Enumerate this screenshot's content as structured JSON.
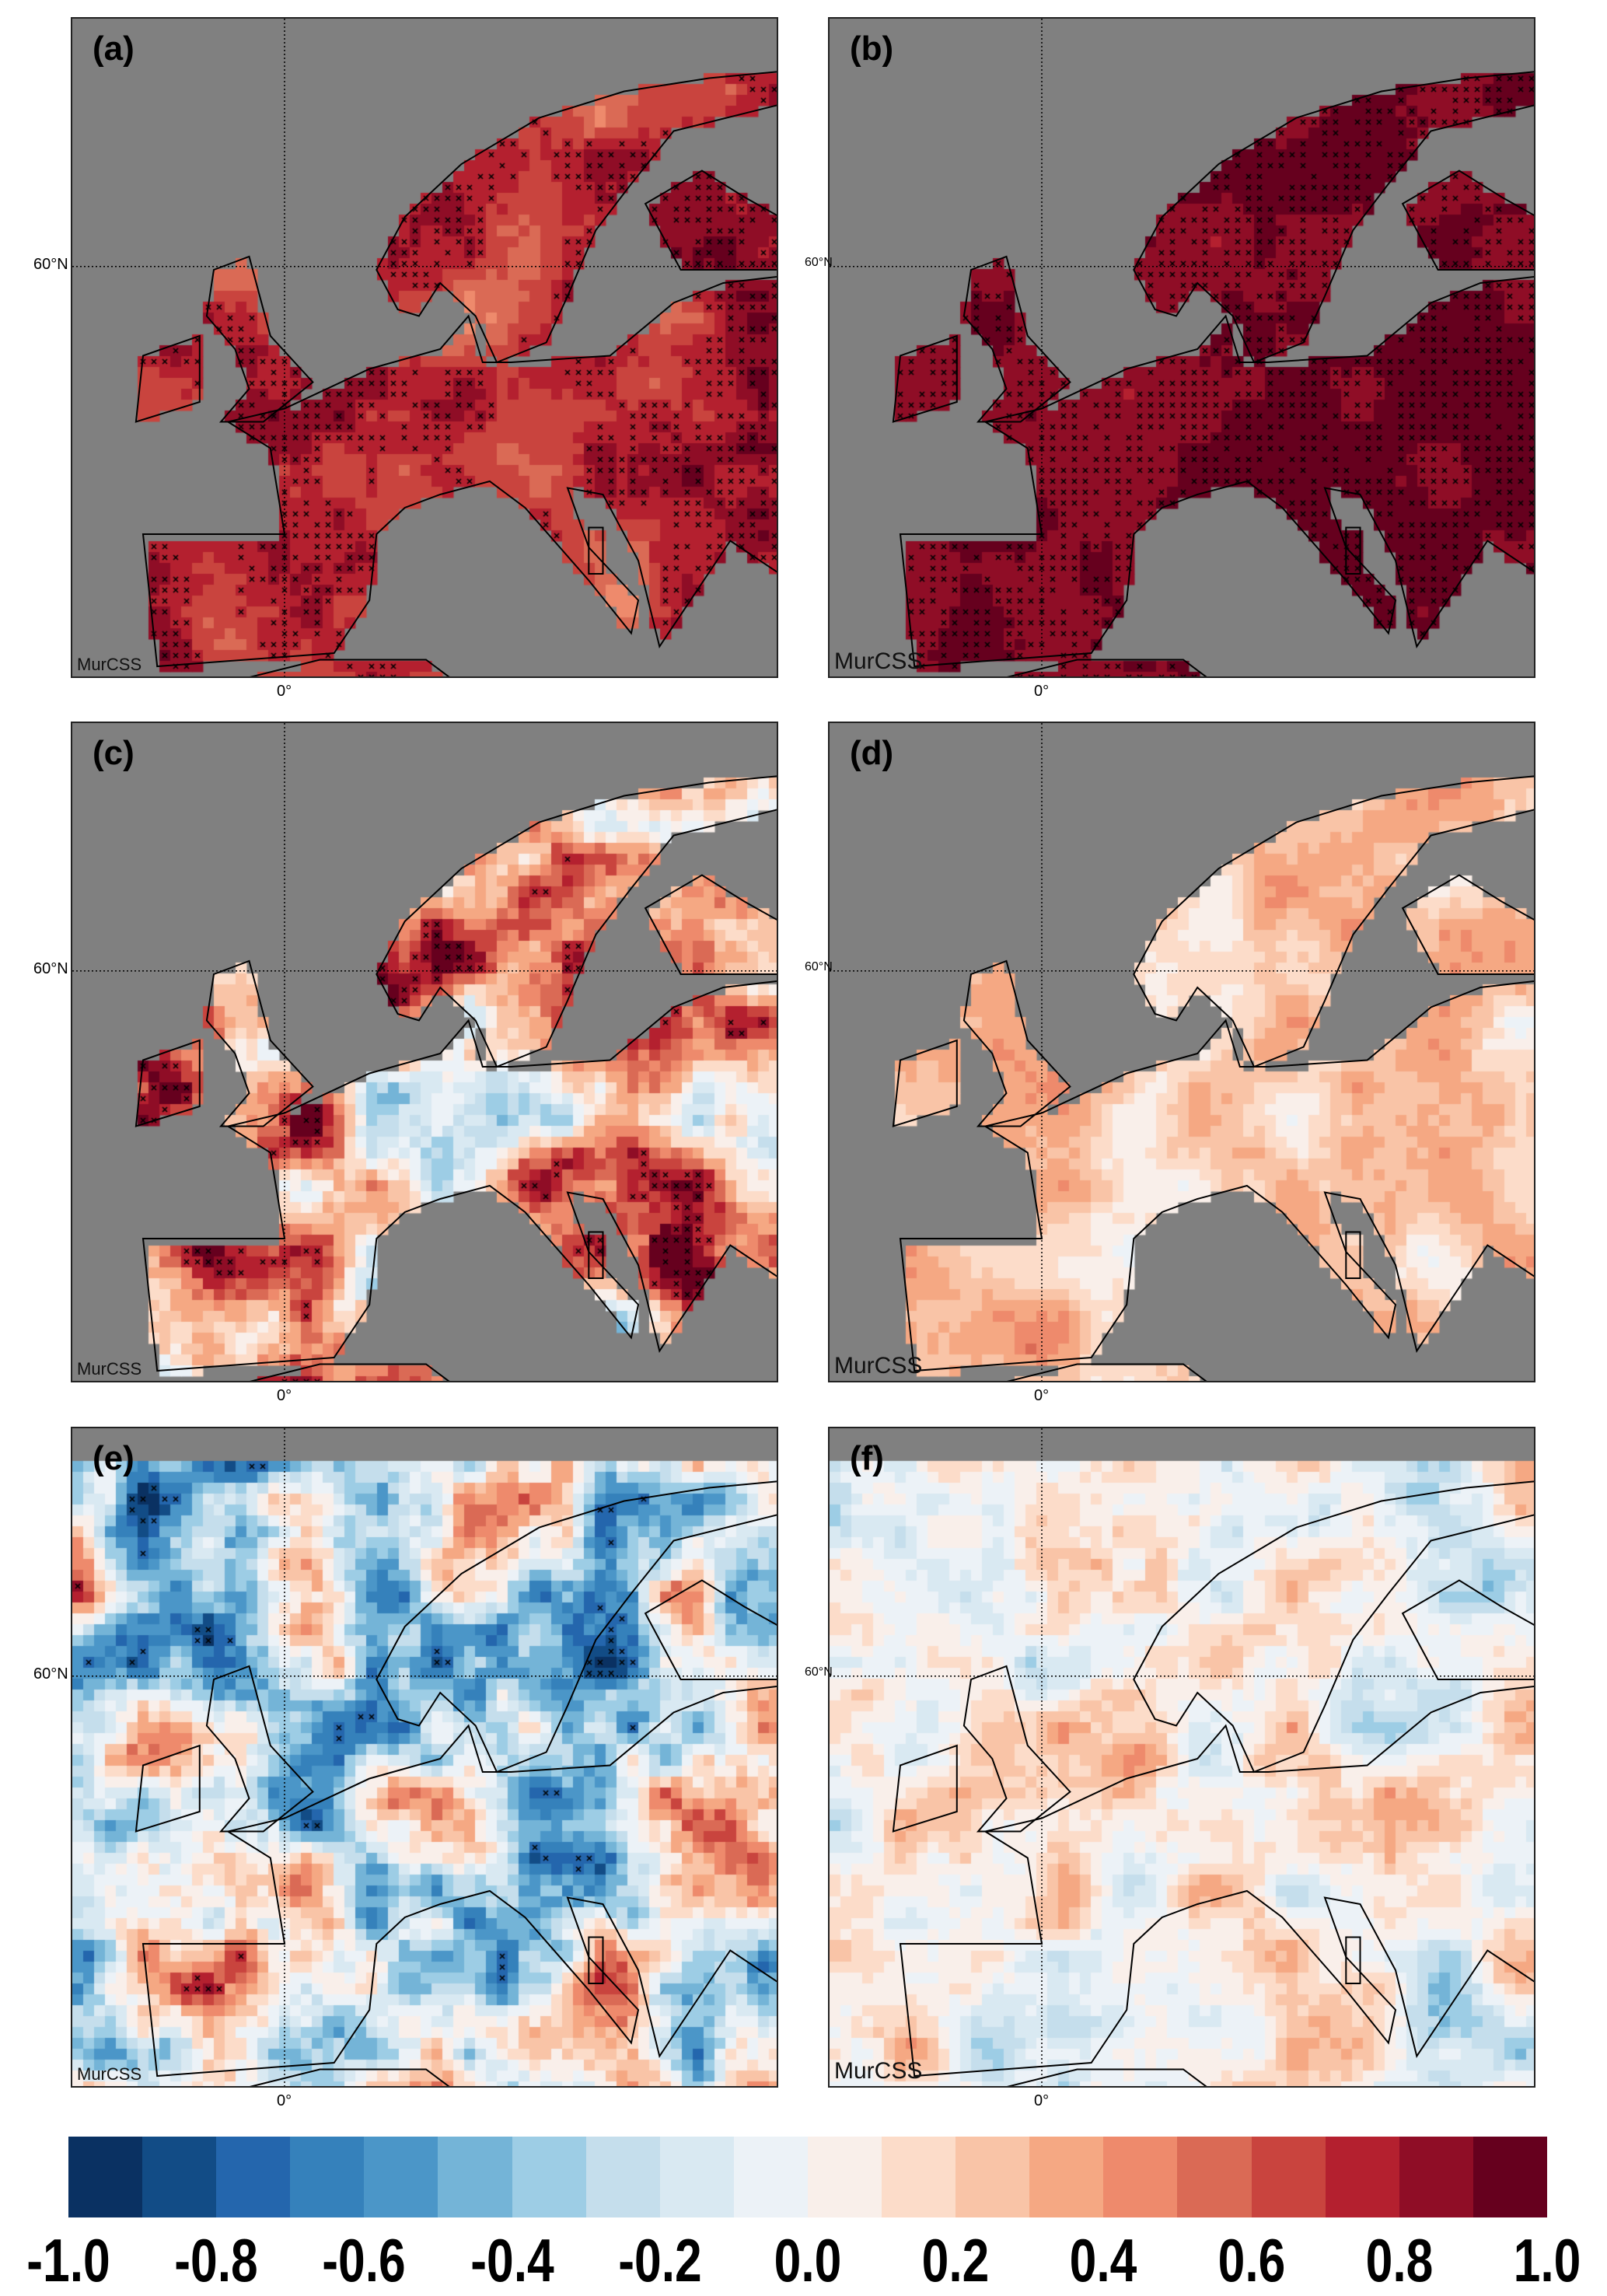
{
  "panels": [
    {
      "label": "(a)",
      "footer": "MurCSS",
      "lat_label": "60°N",
      "lon_label": "0°",
      "masked_ocean": true,
      "base": 0.72,
      "amp": 0.3
    },
    {
      "label": "(b)",
      "footer": "MurCSS",
      "lat_label": "60°N",
      "lon_label": "0°",
      "masked_ocean": true,
      "base": 0.9,
      "amp": 0.12
    },
    {
      "label": "(c)",
      "footer": "MurCSS",
      "lat_label": "60°N",
      "lon_label": "0°",
      "masked_ocean": true,
      "base": 0.3,
      "amp": 0.95
    },
    {
      "label": "(d)",
      "footer": "MurCSS",
      "lat_label": "60°N",
      "lon_label": "0°",
      "masked_ocean": true,
      "base": 0.22,
      "amp": 0.32
    },
    {
      "label": "(e)",
      "footer": "MurCSS",
      "lat_label": "60°N",
      "lon_label": "0°",
      "masked_ocean": false,
      "base": -0.1,
      "amp": 1.0
    },
    {
      "label": "(f)",
      "footer": "MurCSS",
      "lat_label": "60°N",
      "lon_label": "0°",
      "masked_ocean": false,
      "base": 0.05,
      "amp": 0.5
    }
  ],
  "colorbar": {
    "range": [
      -1.0,
      1.0
    ],
    "ticks": [
      "-1.0",
      "-0.8",
      "-0.6",
      "-0.4",
      "-0.2",
      "0.0",
      "0.2",
      "0.4",
      "0.6",
      "0.8",
      "1.0"
    ],
    "colors": [
      "#0a3162",
      "#124c86",
      "#2466ad",
      "#3581bb",
      "#4b96c8",
      "#74b4d7",
      "#9dcde5",
      "#c5deec",
      "#d9e9f2",
      "#ecf2f7",
      "#f9efea",
      "#fcdcc9",
      "#f9c4a7",
      "#f5a883",
      "#ee8a6c",
      "#da6a55",
      "#c9443e",
      "#b4202f",
      "#8f0d26",
      "#66001e"
    ]
  },
  "colors": {
    "no_data": "#808080",
    "coast": "#000000",
    "significance_marker": "#000000"
  }
}
